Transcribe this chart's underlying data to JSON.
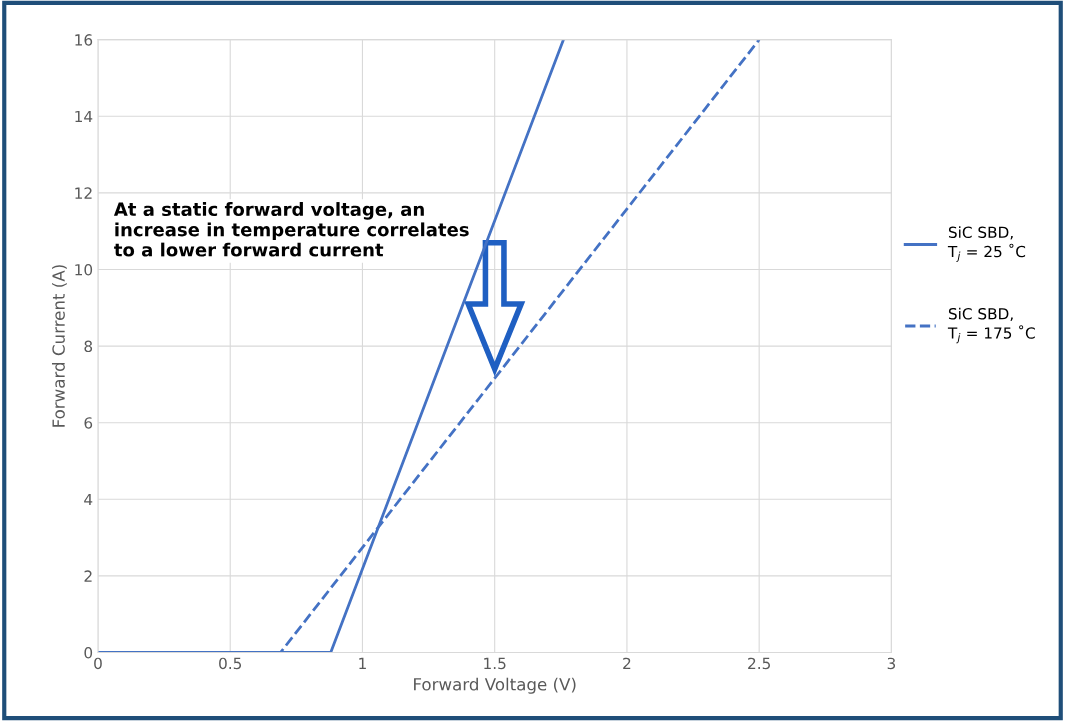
{
  "chart_data": {
    "type": "line",
    "xlabel": "Forward Voltage (V)",
    "ylabel": "Forward Current (A)",
    "annotations": [
      "At a static forward voltage, an\nincrease in temperature correlates\nto a lower forward current"
    ],
    "series": [
      {
        "name": "SiC SBD,\nT$_{j}$ = 25 ˚C",
        "color": "#4472c4",
        "line_style": "solid",
        "x": [
          0,
          0.88,
          1.76
        ],
        "values": [
          0,
          0,
          16
        ]
      },
      {
        "name": "SiC SBD,\nT$_{j}$ = 175 ˚C",
        "color": "#4472c4",
        "line_style": "dashed",
        "x": [
          0,
          0.69,
          2.5
        ],
        "values": [
          0,
          0,
          16
        ]
      }
    ],
    "xlim": [
      0,
      3
    ],
    "xticks": [
      0,
      0.5,
      1,
      1.5,
      2,
      2.5,
      3
    ],
    "ylim": [
      0,
      16
    ],
    "yticks": [
      0,
      2,
      4,
      6,
      8,
      10,
      12,
      14,
      16
    ],
    "grid": true,
    "legend": "right",
    "marker": "none"
  }
}
